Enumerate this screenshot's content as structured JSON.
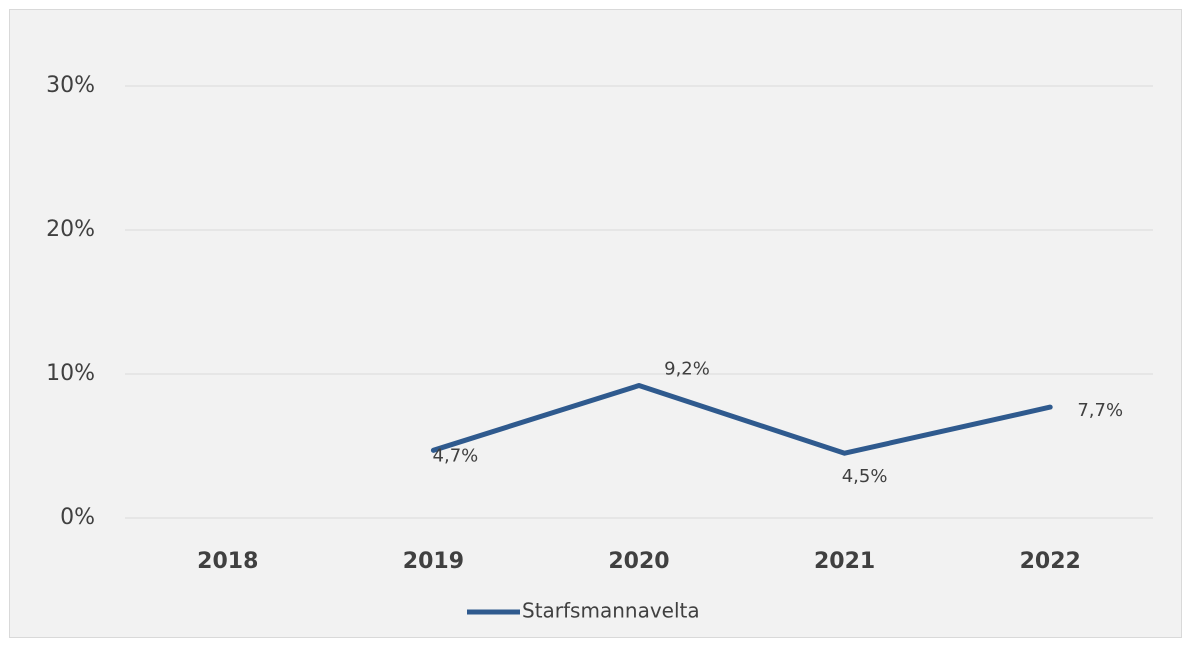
{
  "chart_data": {
    "type": "line",
    "categories": [
      "2018",
      "2019",
      "2020",
      "2021",
      "2022"
    ],
    "series": [
      {
        "name": "Starfsmannavelta",
        "color": "#2f5a8e",
        "values": [
          null,
          4.7,
          9.2,
          4.5,
          7.7
        ],
        "value_labels": [
          null,
          "4,7%",
          "9,2%",
          "4,5%",
          "7,7%"
        ]
      }
    ],
    "ylim": [
      0,
      30
    ],
    "yticks": [
      {
        "value": 0,
        "label": "0%"
      },
      {
        "value": 10,
        "label": "10%"
      },
      {
        "value": 20,
        "label": "20%"
      },
      {
        "value": 30,
        "label": "30%"
      }
    ],
    "grid": true,
    "legend": "bottom"
  }
}
